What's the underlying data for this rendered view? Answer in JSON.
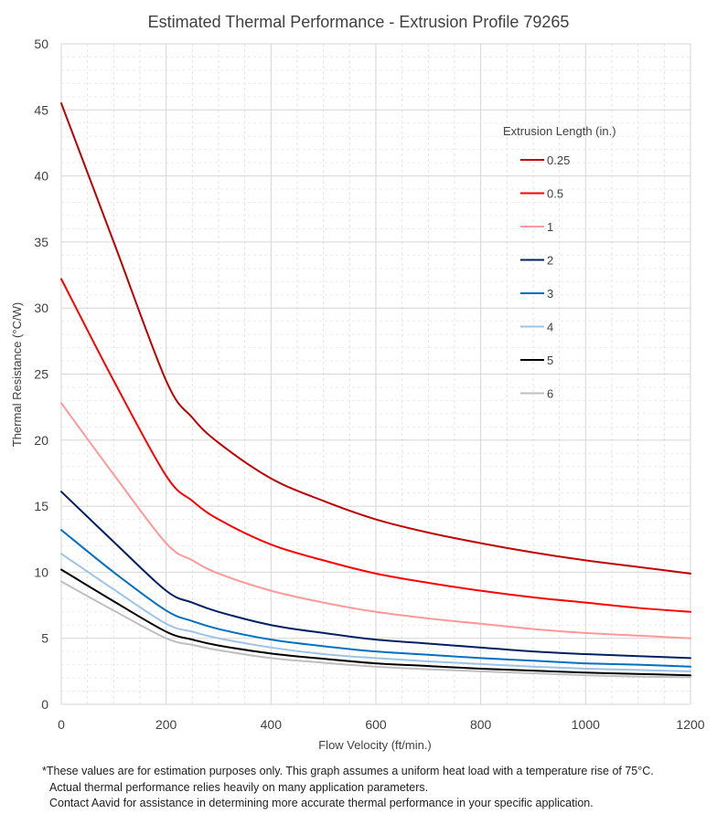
{
  "chart_data": {
    "type": "line",
    "title": "Estimated Thermal Performance - Extrusion Profile 79265",
    "xlabel": "Flow Velocity (ft/min.)",
    "ylabel": "Thermal Resistance (°C/W)",
    "xlim": [
      0,
      1200
    ],
    "ylim": [
      0,
      50
    ],
    "xticks": [
      0,
      200,
      400,
      600,
      800,
      1000,
      1200
    ],
    "yticks": [
      0,
      5,
      10,
      15,
      20,
      25,
      30,
      35,
      40,
      45,
      50
    ],
    "grid": true,
    "legend_title": "Extrusion Length (in.)",
    "legend_position": "top-right",
    "x": [
      0,
      100,
      200,
      250,
      300,
      400,
      500,
      600,
      700,
      800,
      900,
      1000,
      1100,
      1200
    ],
    "series": [
      {
        "name": "0.25",
        "color": "#c00000",
        "values": [
          45.5,
          35.0,
          24.5,
          21.7,
          19.8,
          17.1,
          15.4,
          14.0,
          13.0,
          12.2,
          11.5,
          10.9,
          10.4,
          9.9
        ]
      },
      {
        "name": "0.5",
        "color": "#ff0000",
        "values": [
          32.2,
          24.5,
          17.3,
          15.4,
          14.0,
          12.1,
          10.9,
          9.9,
          9.2,
          8.6,
          8.1,
          7.7,
          7.3,
          7.0
        ]
      },
      {
        "name": "1",
        "color": "#ff9999",
        "values": [
          22.8,
          17.4,
          12.2,
          10.9,
          9.9,
          8.6,
          7.7,
          7.0,
          6.5,
          6.1,
          5.7,
          5.4,
          5.2,
          5.0
        ]
      },
      {
        "name": "2",
        "color": "#002060",
        "values": [
          16.1,
          12.3,
          8.6,
          7.7,
          7.0,
          6.0,
          5.4,
          4.9,
          4.6,
          4.3,
          4.0,
          3.8,
          3.65,
          3.5
        ]
      },
      {
        "name": "3",
        "color": "#0070c0",
        "values": [
          13.2,
          10.0,
          7.1,
          6.3,
          5.7,
          4.9,
          4.4,
          4.0,
          3.75,
          3.5,
          3.3,
          3.1,
          3.0,
          2.85
        ]
      },
      {
        "name": "4",
        "color": "#9dc3e6",
        "values": [
          11.4,
          8.7,
          6.1,
          5.5,
          5.0,
          4.3,
          3.8,
          3.5,
          3.25,
          3.05,
          2.85,
          2.7,
          2.6,
          2.5
        ]
      },
      {
        "name": "5",
        "color": "#000000",
        "values": [
          10.2,
          7.8,
          5.5,
          4.9,
          4.45,
          3.85,
          3.45,
          3.1,
          2.9,
          2.7,
          2.55,
          2.4,
          2.3,
          2.2
        ]
      },
      {
        "name": "6",
        "color": "#bfbfbf",
        "values": [
          9.3,
          7.1,
          5.0,
          4.5,
          4.1,
          3.5,
          3.15,
          2.85,
          2.65,
          2.5,
          2.35,
          2.2,
          2.1,
          2.05
        ]
      }
    ]
  },
  "footnote": {
    "line1": "*These values are for estimation purposes only. This graph assumes a uniform heat load with a temperature rise of 75°C.",
    "line2": "Actual thermal performance relies heavily on many application parameters.",
    "line3": "Contact Aavid for assistance in determining more accurate thermal performance in your specific application."
  }
}
